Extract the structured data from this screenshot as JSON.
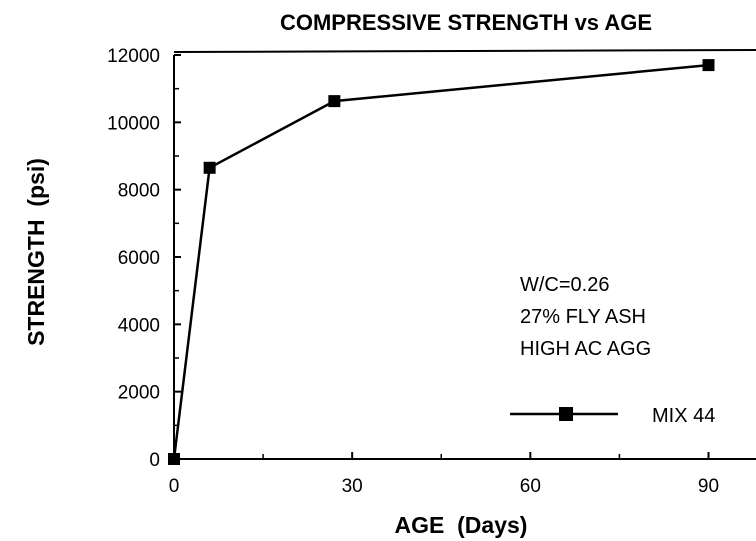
{
  "chart_data": {
    "type": "line",
    "title": "COMPRESSIVE STRENGTH vs AGE",
    "xlabel": "AGE  (Days)",
    "ylabel": "STRENGTH  (psi)",
    "xlim": [
      0,
      98
    ],
    "ylim": [
      0,
      12000
    ],
    "xticks": [
      0,
      30,
      60,
      90
    ],
    "xtick_labels": [
      "0",
      "30",
      "60",
      "90"
    ],
    "yticks": [
      0,
      2000,
      4000,
      6000,
      8000,
      10000,
      12000
    ],
    "ytick_labels": [
      "0",
      "2000",
      "4000",
      "6000",
      "8000",
      "10000",
      "12000"
    ],
    "grid": false,
    "legend_position": "bottom-right",
    "series": [
      {
        "name": "MIX 44",
        "marker": "filled-square",
        "x": [
          0,
          6,
          27,
          90
        ],
        "y": [
          0,
          8650,
          10630,
          11700
        ]
      }
    ],
    "annotations": [
      "W/C=0.26",
      "27% FLY ASH",
      "HIGH AC AGG"
    ]
  }
}
